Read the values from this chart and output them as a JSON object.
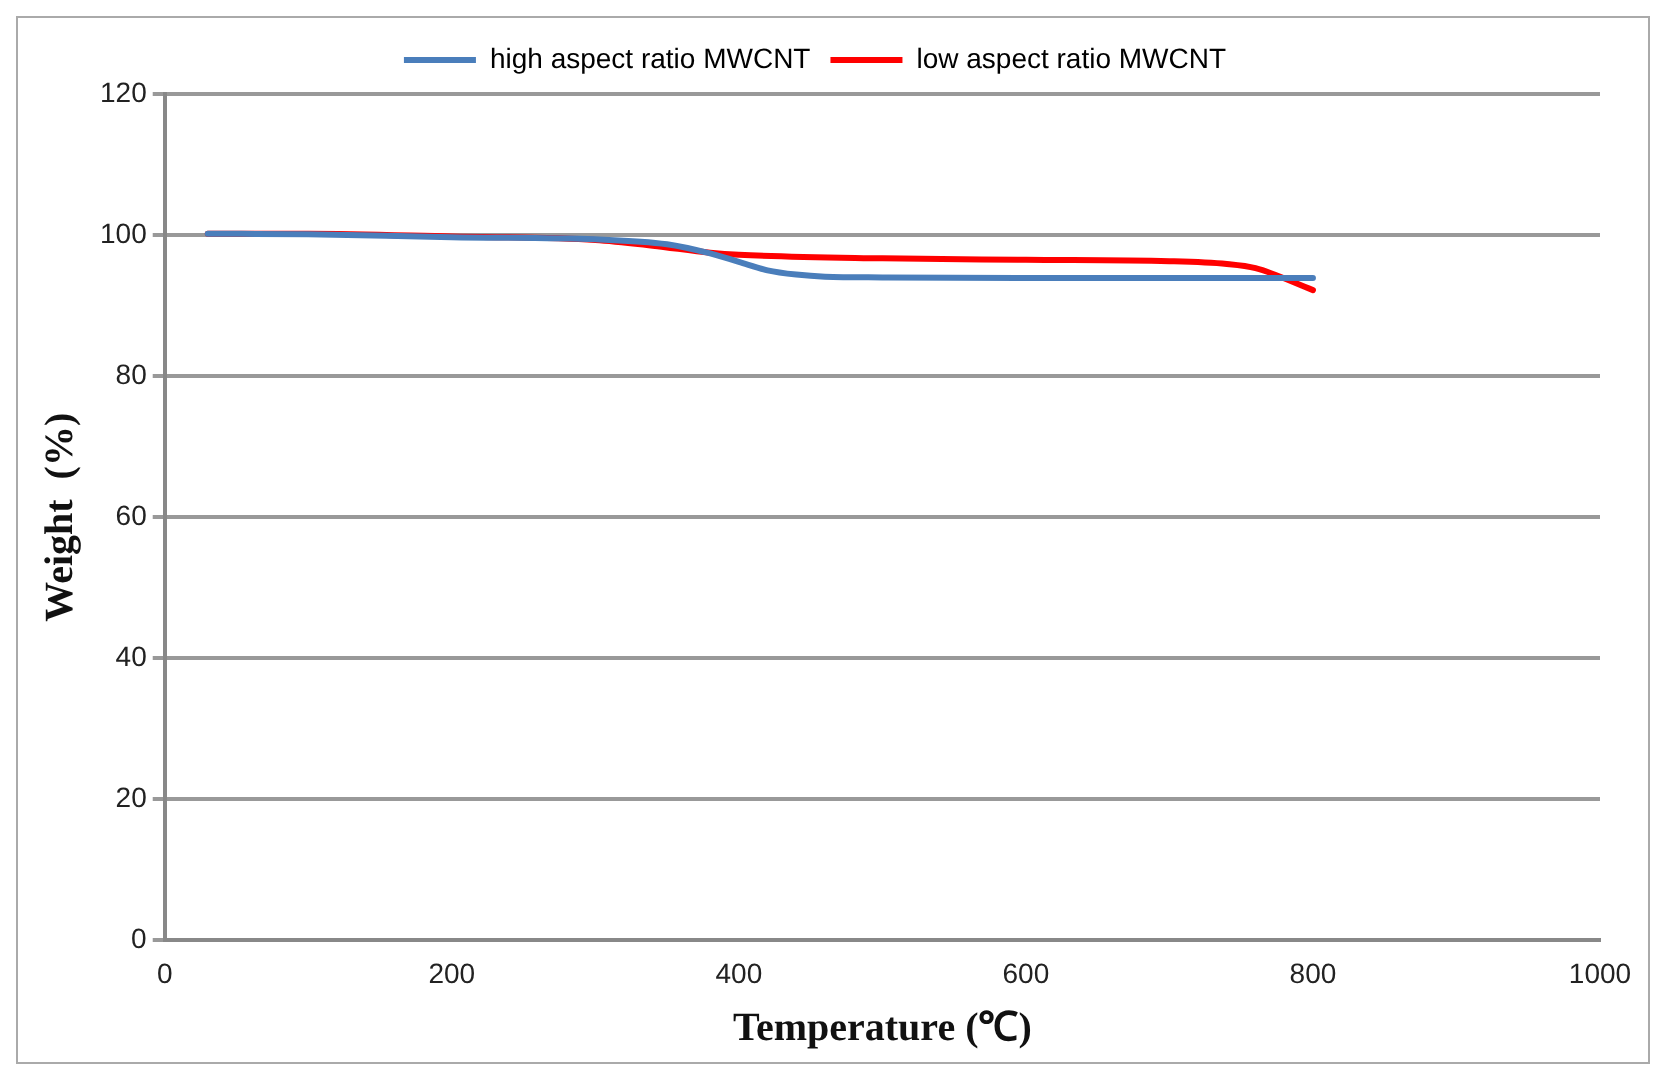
{
  "chart_data": {
    "type": "line",
    "xlabel": "Temperature (℃)",
    "ylabel": "Weight  (%)",
    "xlim": [
      0,
      1000
    ],
    "xticks": [
      0,
      200,
      400,
      600,
      800,
      1000
    ],
    "ylim": [
      0,
      120
    ],
    "yticks": [
      0,
      20,
      40,
      60,
      80,
      100,
      120
    ],
    "grid": "y",
    "legend": "top",
    "marker": "none",
    "line_style": "solid",
    "series": [
      {
        "name": "high aspect ratio MWCNT",
        "color": "#4a7ebb",
        "x": [
          30,
          100,
          200,
          300,
          350,
          380,
          400,
          420,
          440,
          460,
          500,
          600,
          700,
          800
        ],
        "values": [
          100.2,
          100.1,
          99.7,
          99.4,
          98.7,
          97.4,
          96.2,
          95,
          94.4,
          94.1,
          94,
          93.9,
          93.9,
          93.9
        ]
      },
      {
        "name": "low aspect ratio MWCNT",
        "color": "#ff0000",
        "x": [
          30,
          100,
          200,
          300,
          340,
          380,
          400,
          500,
          600,
          700,
          740,
          760,
          800
        ],
        "values": [
          100.2,
          100.2,
          99.8,
          99.3,
          98.5,
          97.5,
          97.2,
          96.7,
          96.5,
          96.3,
          95.9,
          95.3,
          92.2
        ]
      }
    ]
  }
}
